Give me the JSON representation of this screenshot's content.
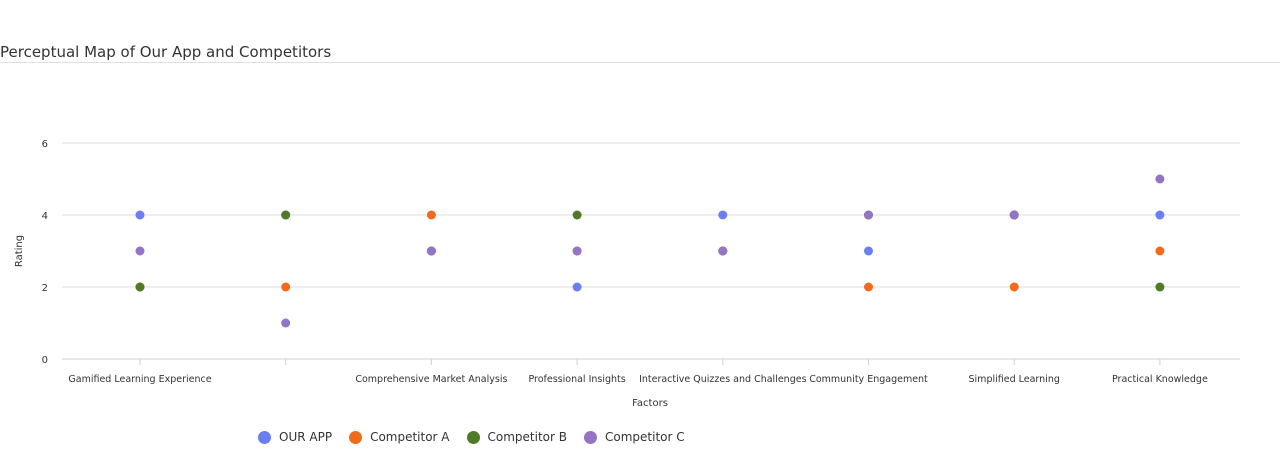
{
  "page": {
    "title": "Perceptual Map of Our App and Competitors"
  },
  "chart_data": {
    "type": "scatter",
    "title": "Perceptual Map of Our App and Competitors",
    "xlabel": "Factors",
    "ylabel": "Rating",
    "ylim": [
      0,
      6
    ],
    "yticks": [
      0,
      2,
      4,
      6
    ],
    "grid": true,
    "legend_position": "bottom",
    "categories": [
      "Gamified Learning Experience",
      "",
      "Comprehensive Market Analysis",
      "Professional Insights",
      "Interactive Quizzes and Challenges",
      "Community Engagement",
      "Simplified Learning",
      "Practical Knowledge"
    ],
    "series": [
      {
        "name": "OUR APP",
        "color": "#6b7ff0",
        "values": [
          4,
          4,
          3,
          2,
          4,
          3,
          4,
          4
        ]
      },
      {
        "name": "Competitor A",
        "color": "#f26b1d",
        "values": [
          2,
          2,
          4,
          3,
          3,
          2,
          2,
          3
        ]
      },
      {
        "name": "Competitor B",
        "color": "#4f7a28",
        "values": [
          2,
          4,
          3,
          4,
          3,
          4,
          4,
          2
        ]
      },
      {
        "name": "Competitor C",
        "color": "#9474c4",
        "values": [
          3,
          1,
          3,
          3,
          3,
          4,
          4,
          5
        ]
      }
    ]
  }
}
